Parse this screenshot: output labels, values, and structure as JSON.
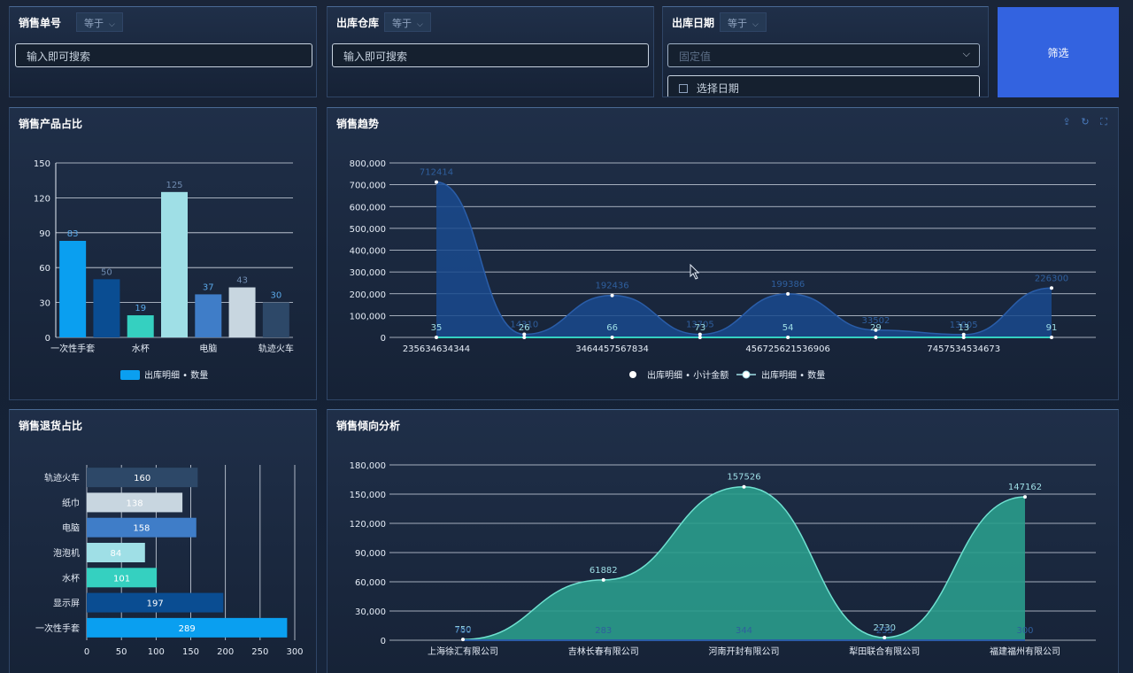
{
  "filters": {
    "order_no": {
      "label": "销售单号",
      "operator": "等于",
      "placeholder": "输入即可搜索"
    },
    "warehouse": {
      "label": "出库仓库",
      "operator": "等于",
      "placeholder": "输入即可搜索"
    },
    "date": {
      "label": "出库日期",
      "operator": "等于",
      "mode_placeholder": "固定值",
      "date_placeholder": "选择日期"
    },
    "submit_label": "筛选"
  },
  "colors": {
    "accent": "#3363e0",
    "bar_palette": [
      "#0a9ff0",
      "#0a4d92",
      "#35d0c0",
      "#9fdfe6",
      "#3f7dc8",
      "#c8d6e0",
      "#2d4868"
    ],
    "area_blue": "#1a4a8e",
    "area_teal": "#2a9c8c"
  },
  "panels": {
    "product_share": {
      "title": "销售产品占比",
      "legend": "出库明细 • 数量",
      "chart_data": {
        "type": "bar",
        "categories": [
          "一次性手套",
          "",
          "水杯",
          "",
          "电脑",
          "",
          "轨迹火车"
        ],
        "values": [
          83,
          50,
          19,
          125,
          37,
          43,
          30
        ],
        "ylim": [
          0,
          150
        ],
        "yticks": [
          0,
          30,
          60,
          90,
          120,
          150
        ],
        "series": [
          {
            "name": "出库明细 • 数量",
            "values": [
              83,
              50,
              19,
              125,
              37,
              43,
              30
            ]
          }
        ],
        "data_labels": [
          "83",
          "50",
          "19",
          "125",
          "37",
          "43",
          "30"
        ],
        "grid": true,
        "legend_position": "bottom"
      }
    },
    "sales_trend": {
      "title": "销售趋势",
      "legend_amount": "出库明细 • 小计金额",
      "legend_qty": "出库明细 • 数量",
      "chart_data": {
        "type": "area",
        "x": [
          "235634634344",
          "",
          "3464457567834",
          "",
          "456725621536906",
          "",
          "7457534534673",
          ""
        ],
        "ylim": [
          0,
          800000
        ],
        "yticks": [
          "0",
          "100,000",
          "200,000",
          "300,000",
          "400,000",
          "500,000",
          "600,000",
          "700,000",
          "800,000"
        ],
        "series": [
          {
            "name": "出库明细 • 小计金额",
            "values": [
              712414,
              14310,
              192436,
              13705,
              199386,
              33502,
              13005,
              226300
            ]
          },
          {
            "name": "出库明细 • 数量",
            "values": [
              35,
              26,
              66,
              73,
              54,
              29,
              13,
              91
            ]
          }
        ],
        "data_labels_amount": [
          "712414",
          "14310",
          "192436",
          "13705",
          "199386",
          "33502",
          "13005",
          "226300"
        ],
        "data_labels_qty": [
          "35",
          "26",
          "66",
          "73",
          "54",
          "29",
          "13",
          "91"
        ],
        "grid": true,
        "legend_position": "bottom"
      }
    },
    "return_share": {
      "title": "销售退货占比",
      "legend": "出库明细 • 数量",
      "chart_data": {
        "type": "bar",
        "orientation": "horizontal",
        "categories": [
          "轨迹火车",
          "纸巾",
          "电脑",
          "泡泡机",
          "水杯",
          "显示屏",
          "一次性手套"
        ],
        "values": [
          160,
          138,
          158,
          84,
          101,
          197,
          289
        ],
        "data_labels": [
          "160",
          "138",
          "158",
          "84",
          "101",
          "197",
          "289"
        ],
        "xlim": [
          0,
          300
        ],
        "xticks": [
          "0",
          "50",
          "100",
          "150",
          "200",
          "250",
          "300"
        ],
        "grid": true
      }
    },
    "tendency": {
      "title": "销售倾向分析",
      "legend_qty": "出库明细 • 数量",
      "legend_amount": "出库明细 • 小计金额",
      "chart_data": {
        "type": "area",
        "x": [
          "上海徐汇有限公司",
          "吉林长春有限公司",
          "河南开封有限公司",
          "犁田联合有限公司",
          "福建福州有限公司"
        ],
        "ylim": [
          0,
          180000
        ],
        "yticks": [
          "0",
          "30,000",
          "60,000",
          "90,000",
          "120,000",
          "150,000",
          "180,000"
        ],
        "series": [
          {
            "name": "出库明细 • 小计金额",
            "values": [
              750,
              61882,
              157526,
              2730,
              147162
            ]
          },
          {
            "name": "出库明细 • 数量",
            "values": [
              760,
              283,
              344,
              233,
              300
            ]
          }
        ],
        "data_labels_amount": [
          "750",
          "61882",
          "157526",
          "2730",
          "147162"
        ],
        "data_labels_qty": [
          "760",
          "283",
          "344",
          "233",
          "300"
        ],
        "grid": true
      }
    }
  }
}
